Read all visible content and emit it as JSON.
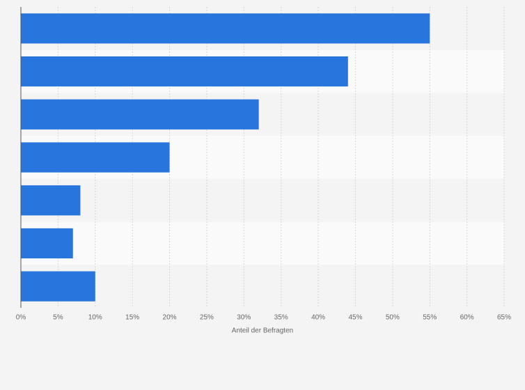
{
  "chart_data": {
    "type": "barh",
    "xlabel": "Anteil der Befragten",
    "categories": [
      null,
      null,
      null,
      null,
      null,
      null,
      null
    ],
    "values": [
      55,
      44,
      32,
      20,
      8,
      7,
      10
    ],
    "color": "#2876dd",
    "xlim": [
      0,
      65
    ],
    "xticks": [
      {
        "value": 0,
        "label": "0%"
      },
      {
        "value": 5,
        "label": "5%"
      },
      {
        "value": 10,
        "label": "10%"
      },
      {
        "value": 15,
        "label": "15%"
      },
      {
        "value": 20,
        "label": "20%"
      },
      {
        "value": 25,
        "label": "25%"
      },
      {
        "value": 30,
        "label": "30%"
      },
      {
        "value": 35,
        "label": "35%"
      },
      {
        "value": 40,
        "label": "40%"
      },
      {
        "value": 45,
        "label": "45%"
      },
      {
        "value": 50,
        "label": "50%"
      },
      {
        "value": 55,
        "label": "55%"
      },
      {
        "value": 60,
        "label": "60%"
      },
      {
        "value": 65,
        "label": "65%"
      }
    ],
    "grid": true
  }
}
